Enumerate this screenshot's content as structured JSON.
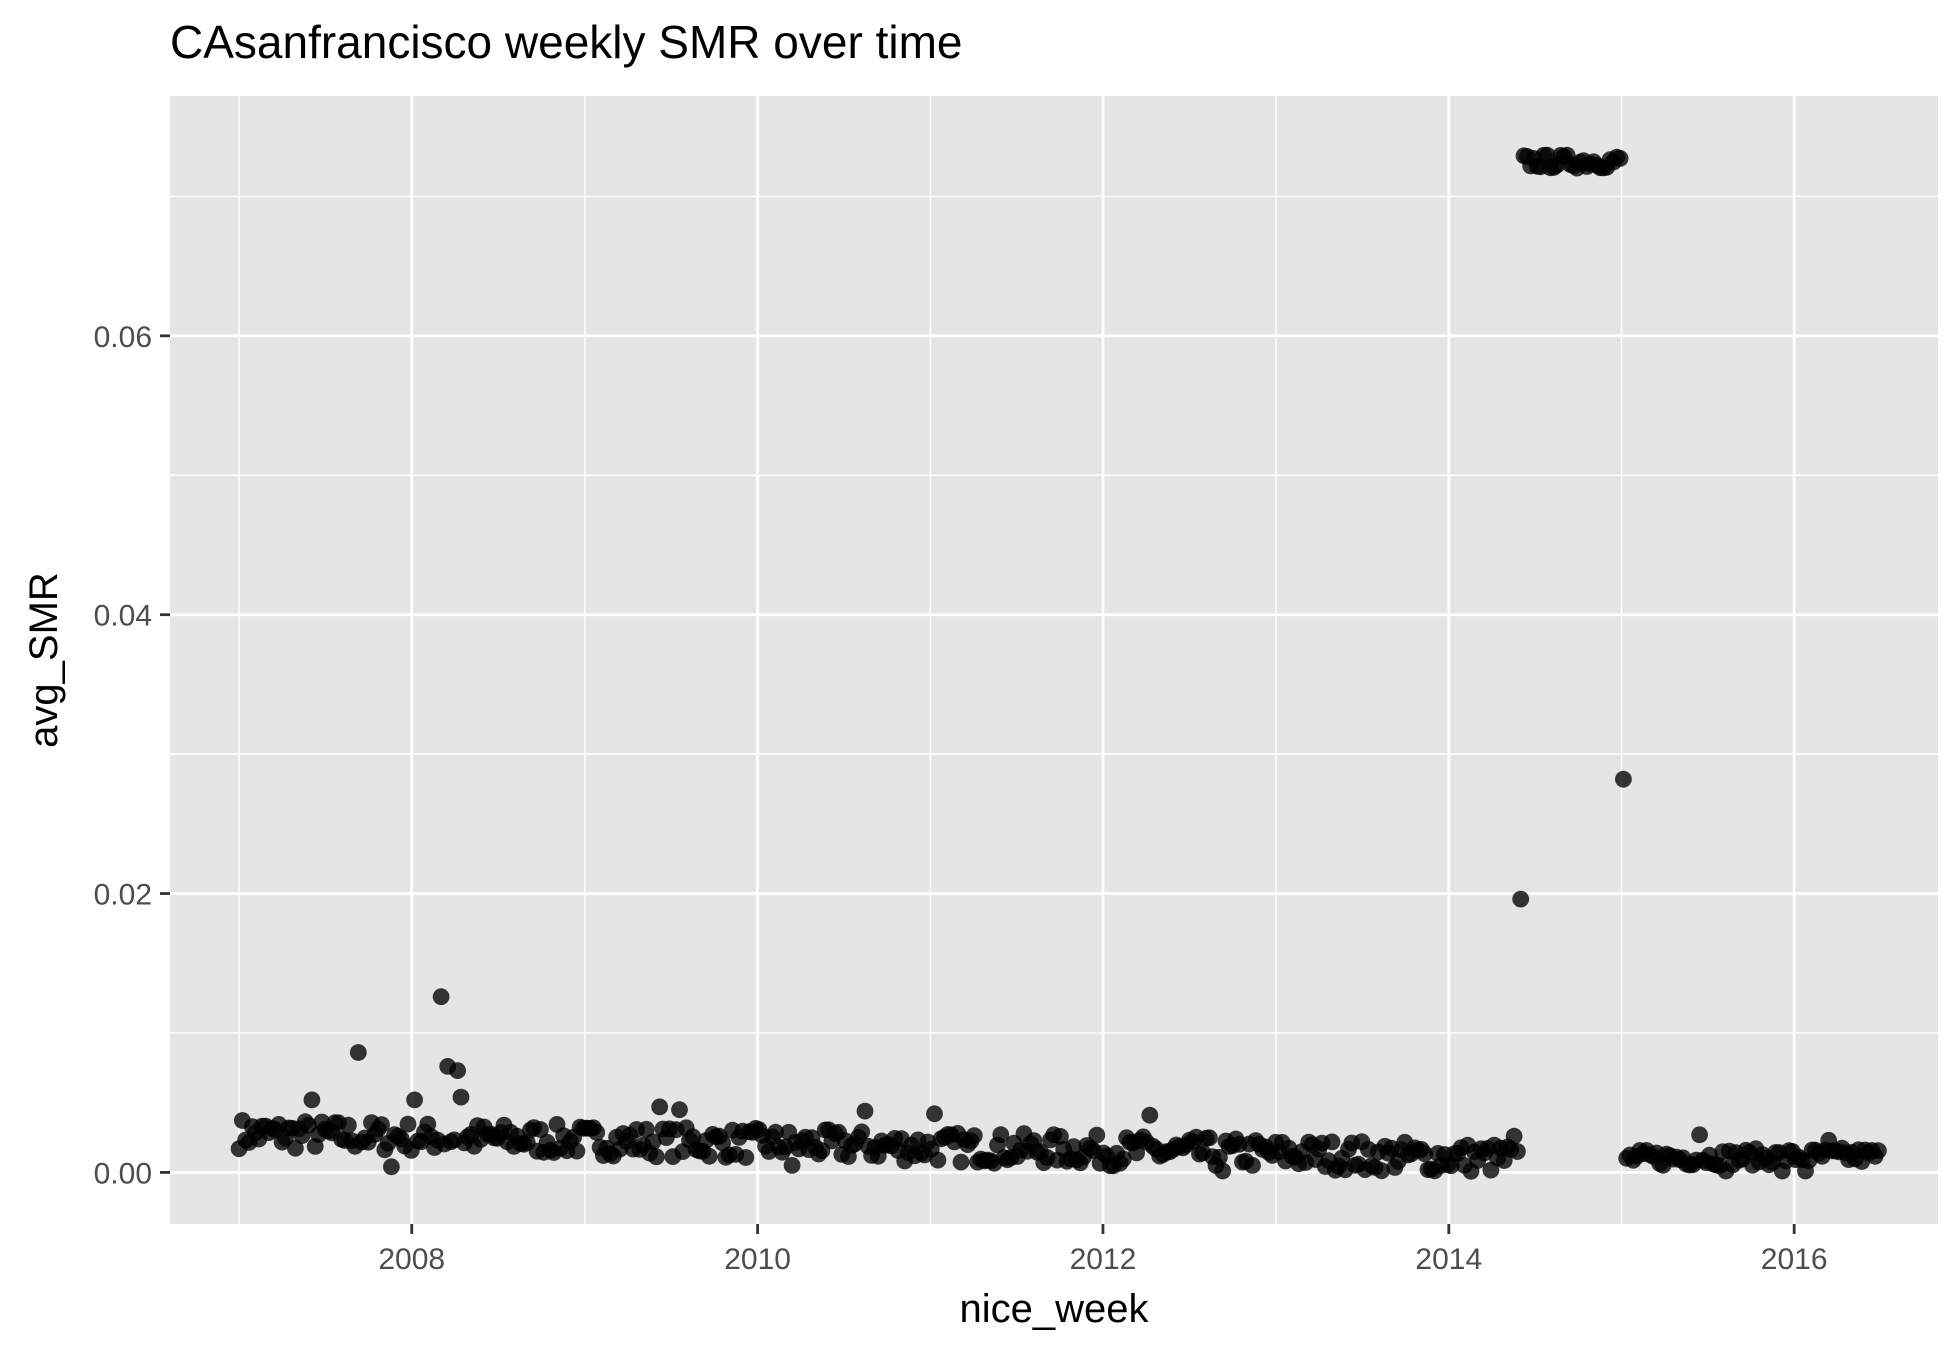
{
  "chart_data": {
    "type": "scatter",
    "title": "CAsanfrancisco weekly SMR over time",
    "xlabel": "nice_week",
    "ylabel": "avg_SMR",
    "x_ticks": [
      "2008",
      "2010",
      "2012",
      "2014",
      "2016"
    ],
    "y_ticks": [
      "0.00",
      "0.02",
      "0.04",
      "0.06"
    ],
    "xlim": [
      "2006-08-08",
      "2016-10-31"
    ],
    "ylim": [
      -0.0037,
      0.0772
    ],
    "grid": true,
    "legend": "none",
    "colors": {
      "panel": "#e5e5e5",
      "grid": "#ffffff",
      "point": "#000000"
    },
    "segments": [
      {
        "start": "2007-01-01",
        "end": "2014-05-26",
        "y0": 0.0028,
        "y1": 0.001,
        "amp": 0.0011
      },
      {
        "start": "2014-06-02",
        "end": "2014-12-29",
        "y0": 0.0725,
        "y1": 0.0725,
        "amp": 0.0005
      },
      {
        "start": "2015-01-05",
        "end": "2016-06-27",
        "y0": 0.001,
        "y1": 0.0012,
        "amp": 0.0006
      }
    ],
    "points": [
      {
        "x": "2014-06-02",
        "y": 0.0196
      },
      {
        "x": "2015-01-05",
        "y": 0.0282
      },
      {
        "x": "2008-03-03",
        "y": 0.0126
      },
      {
        "x": "2007-09-10",
        "y": 0.0086
      },
      {
        "x": "2008-03-17",
        "y": 0.0076
      },
      {
        "x": "2008-04-07",
        "y": 0.0073
      },
      {
        "x": "2007-06-04",
        "y": 0.0052
      },
      {
        "x": "2008-01-07",
        "y": 0.0052
      },
      {
        "x": "2008-04-14",
        "y": 0.0054
      },
      {
        "x": "2009-06-08",
        "y": 0.0047
      },
      {
        "x": "2009-07-20",
        "y": 0.0045
      },
      {
        "x": "2011-01-10",
        "y": 0.0042
      },
      {
        "x": "2012-04-09",
        "y": 0.0041
      },
      {
        "x": "2010-08-16",
        "y": 0.0044
      },
      {
        "x": "2010-03-15",
        "y": 0.0005
      },
      {
        "x": "2012-09-10",
        "y": 0.0001
      },
      {
        "x": "2013-07-08",
        "y": 0.0002
      },
      {
        "x": "2013-11-18",
        "y": 0.0002
      },
      {
        "x": "2007-11-19",
        "y": 0.0004
      },
      {
        "x": "2014-05-19",
        "y": 0.0026
      },
      {
        "x": "2015-06-15",
        "y": 0.0027
      },
      {
        "x": "2016-03-14",
        "y": 0.0023
      },
      {
        "x": "2015-12-07",
        "y": 0.0001
      },
      {
        "x": "2016-01-25",
        "y": 0.0001
      },
      {
        "x": "2015-08-10",
        "y": 0.0001
      }
    ]
  }
}
